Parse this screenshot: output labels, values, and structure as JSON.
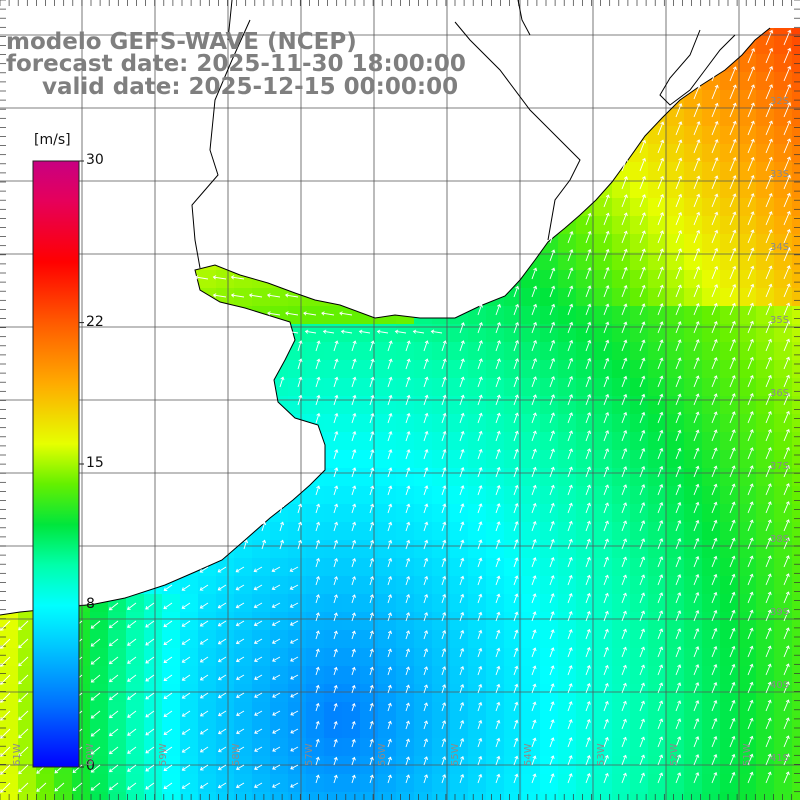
{
  "title": {
    "line1": "modelo GEFS-WAVE (NCEP)",
    "line2": "forecast date: 2025-11-30 18:00:00",
    "line3": "valid date: 2025-12-15 00:00:00"
  },
  "colorbar": {
    "unit": "[m/s]",
    "ticks": [
      {
        "value": 30,
        "label": "30"
      },
      {
        "value": 22,
        "label": "22"
      },
      {
        "value": 15,
        "label": "15"
      },
      {
        "value": 8,
        "label": "8"
      },
      {
        "value": 0,
        "label": "0"
      }
    ],
    "colors": [
      "#0000ff",
      "#00a0ff",
      "#00ffff",
      "#00ff80",
      "#00e000",
      "#80ff00",
      "#ffff00",
      "#ffa000",
      "#ff4000",
      "#ff0000",
      "#ff0060",
      "#c00080"
    ]
  },
  "lat_labels": [
    "32S",
    "33S",
    "34S",
    "35S",
    "36S",
    "37S",
    "38S",
    "39S",
    "40S",
    "41S"
  ],
  "lon_labels": [
    "61W",
    "60W",
    "59W",
    "58W",
    "57W",
    "56W",
    "55W",
    "54W",
    "53W",
    "52W",
    "51W"
  ],
  "colors": {
    "land": "#ffffff",
    "coast": "#000000",
    "grid": "#555555",
    "title": "#7f7f7f",
    "arrows": "#ffffff"
  }
}
